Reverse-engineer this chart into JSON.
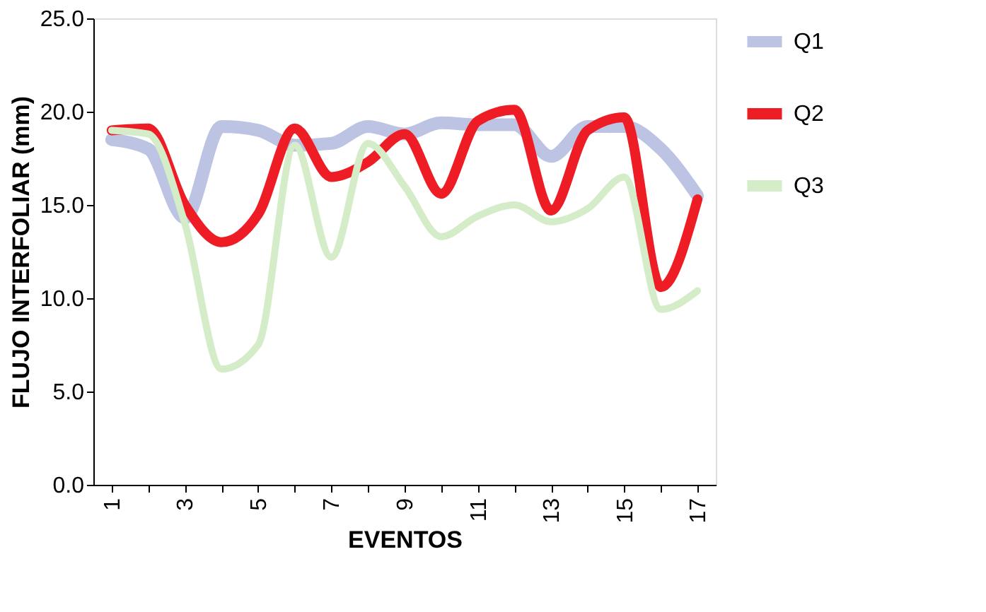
{
  "chart_data": {
    "type": "line",
    "xlabel": "EVENTOS",
    "ylabel": "FLUJO INTERFOLIAR (mm)",
    "categories": [
      "1",
      null,
      "3",
      null,
      "5",
      null,
      "7",
      null,
      "9",
      null,
      "11",
      null,
      "13",
      null,
      "15",
      null,
      "17"
    ],
    "series": [
      {
        "name": "Q1",
        "color": "#bcc3e3",
        "values": [
          18.5,
          18.0,
          14.3,
          19.2,
          19.0,
          18.2,
          18.3,
          19.2,
          18.8,
          19.4,
          19.3,
          19.3,
          17.6,
          19.2,
          19.2,
          18.0,
          15.5
        ]
      },
      {
        "name": "Q2",
        "color": "#ee1c24",
        "values": [
          19.0,
          19.1,
          15.0,
          13.0,
          14.5,
          19.1,
          16.5,
          17.3,
          18.8,
          15.6,
          19.5,
          20.1,
          14.7,
          19.0,
          19.7,
          10.6,
          15.3
        ]
      },
      {
        "name": "Q3",
        "color": "#d4ecc8",
        "values": [
          19.0,
          18.8,
          14.0,
          6.2,
          7.5,
          18.2,
          12.2,
          18.3,
          16.0,
          13.3,
          14.4,
          15.0,
          14.1,
          14.8,
          16.5,
          9.4,
          10.4
        ]
      }
    ],
    "ylim": [
      0,
      25
    ],
    "yticks": [
      {
        "value": 0,
        "label": "0.0"
      },
      {
        "value": 5,
        "label": "5.0"
      },
      {
        "value": 10,
        "label": "10.0"
      },
      {
        "value": 15,
        "label": "15.0"
      },
      {
        "value": 20,
        "label": "20.0"
      },
      {
        "value": 25,
        "label": "25.0"
      }
    ],
    "grid": false,
    "legend": "right",
    "marker": "none",
    "line_style": "solid"
  }
}
